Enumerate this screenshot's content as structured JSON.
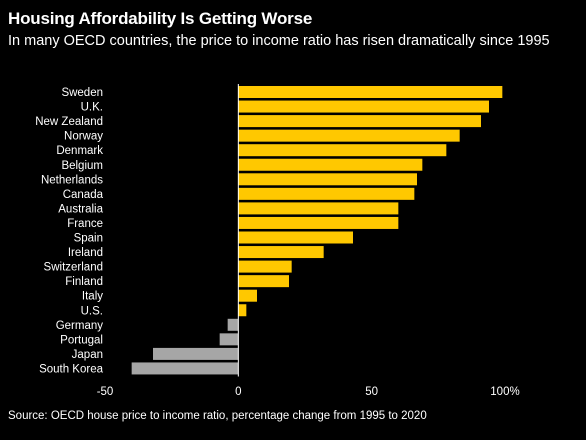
{
  "header": {
    "title": "Housing Affordability Is Getting Worse",
    "subtitle": "In many OECD countries, the price to income ratio has risen dramatically since 1995"
  },
  "footer": {
    "source": "Source: OECD house price to income ratio, percentage change from 1995 to 2020"
  },
  "colors": {
    "background": "#000000",
    "positive": "#ffc800",
    "negative": "#a6a6a6",
    "text": "#ffffff"
  },
  "chart_data": {
    "type": "bar",
    "orientation": "horizontal",
    "title": "Housing Affordability Is Getting Worse",
    "subtitle": "In many OECD countries, the price to income ratio has risen dramatically since 1995",
    "xlabel": "",
    "ylabel": "",
    "xlim": [
      -50,
      100
    ],
    "x_ticks": [
      -50,
      0,
      50,
      100
    ],
    "x_tick_labels": [
      "-50",
      "0",
      "50",
      "100%"
    ],
    "grid": false,
    "legend": "none",
    "categories": [
      "Sweden",
      "U.K.",
      "New Zealand",
      "Norway",
      "Denmark",
      "Belgium",
      "Netherlands",
      "Canada",
      "Australia",
      "France",
      "Spain",
      "Ireland",
      "Switzerland",
      "Finland",
      "Italy",
      "U.S.",
      "Germany",
      "Portugal",
      "Japan",
      "South Korea"
    ],
    "values": [
      99,
      94,
      91,
      83,
      78,
      69,
      67,
      66,
      60,
      60,
      43,
      32,
      20,
      19,
      7,
      3,
      -4,
      -7,
      -32,
      -40
    ]
  }
}
